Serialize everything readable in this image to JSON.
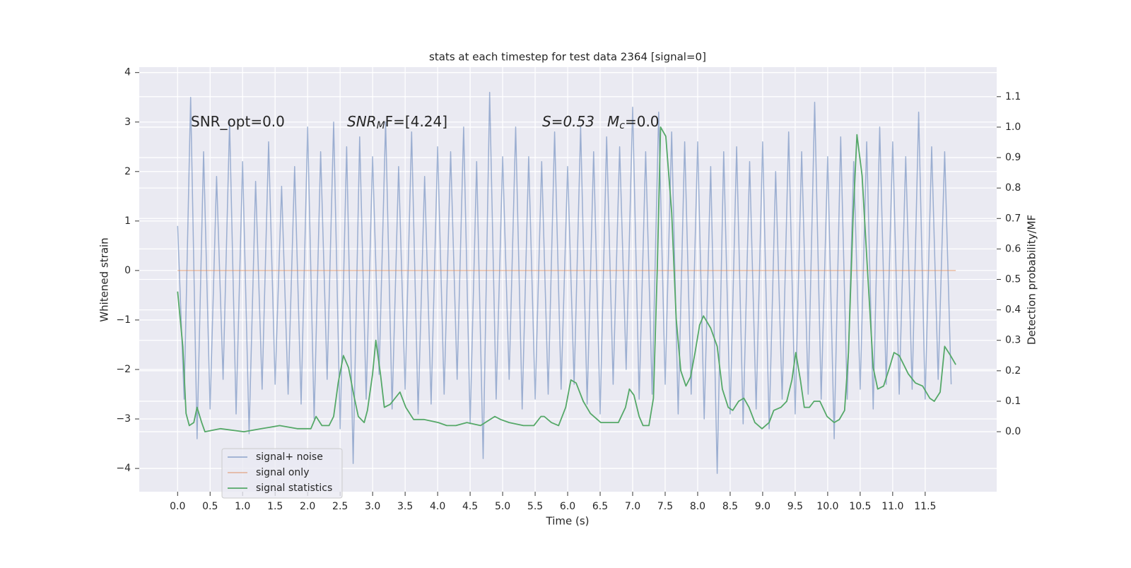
{
  "chart_data": {
    "type": "line",
    "title": "stats at each timestep for test data 2364 [signal=0]",
    "xlabel": "Time (s)",
    "ylabel": "Whitened strain",
    "y2label": "Detection probability/MF",
    "annotations": [
      {
        "text": "SNR_opt=0.0"
      },
      {
        "text": "SNR",
        "sub": "M",
        "tail": "F=[4.24]"
      },
      {
        "text": "S=0.53"
      },
      {
        "text": "M",
        "sub": "c",
        "tail": "=0.0"
      }
    ],
    "grid": true,
    "legend": "lower left",
    "xlim": [
      -0.59,
      12.6
    ],
    "ylim": [
      -4.47,
      4.11
    ],
    "y2lim": [
      -0.197,
      1.197
    ],
    "xticks": [
      {
        "value": 0,
        "label": "0.0"
      },
      0.5,
      {
        "value": 1,
        "label": "1.0"
      },
      1.5,
      {
        "value": 2,
        "label": "2.0"
      },
      2.5,
      {
        "value": 3,
        "label": "3.0"
      },
      3.5,
      {
        "value": 4,
        "label": "4.0"
      },
      4.5,
      {
        "value": 5,
        "label": "5.0"
      },
      5.5,
      {
        "value": 6,
        "label": "6.0"
      },
      6.5,
      {
        "value": 7,
        "label": "7.0"
      },
      7.5,
      {
        "value": 8,
        "label": "8.0"
      },
      8.5,
      {
        "value": 9,
        "label": "9.0"
      },
      9.5,
      {
        "value": 10,
        "label": "10.0"
      },
      10.5,
      {
        "value": 11,
        "label": "11.0"
      },
      11.5
    ],
    "yticks": [
      {
        "value": -4,
        "label": "−4"
      },
      {
        "value": -3,
        "label": "−3"
      },
      {
        "value": -2,
        "label": "−2"
      },
      {
        "value": -1,
        "label": "−1"
      },
      0,
      1,
      2,
      3,
      4
    ],
    "y2ticks": [
      {
        "value": 0,
        "label": "0.0"
      },
      0.1,
      0.2,
      0.3,
      0.4,
      0.5,
      0.6,
      0.7,
      0.8,
      0.9,
      {
        "value": 1,
        "label": "1.0"
      },
      1.1
    ],
    "series": [
      {
        "name": "signal+ noise",
        "color": "#4c72b0",
        "x": [
          0,
          0.1,
          0.2,
          0.3,
          0.4,
          0.5,
          0.6,
          0.7,
          0.8,
          0.9,
          1,
          1.1,
          1.2,
          1.3,
          1.4,
          1.5,
          1.6,
          1.7,
          1.8,
          1.9,
          2,
          2.1,
          2.2,
          2.3,
          2.4,
          2.5,
          2.6,
          2.7,
          2.8,
          2.9,
          3,
          3.1,
          3.2,
          3.3,
          3.4,
          3.5,
          3.6,
          3.7,
          3.8,
          3.9,
          4,
          4.1,
          4.2,
          4.3,
          4.4,
          4.5,
          4.6,
          4.7,
          4.8,
          4.9,
          5,
          5.1,
          5.2,
          5.3,
          5.4,
          5.5,
          5.6,
          5.7,
          5.8,
          5.9,
          6,
          6.1,
          6.2,
          6.3,
          6.4,
          6.5,
          6.6,
          6.7,
          6.8,
          6.9,
          7,
          7.1,
          7.2,
          7.3,
          7.4,
          7.5,
          7.6,
          7.7,
          7.8,
          7.9,
          8,
          8.1,
          8.2,
          8.3,
          8.4,
          8.5,
          8.6,
          8.7,
          8.8,
          8.9,
          9,
          9.1,
          9.2,
          9.3,
          9.4,
          9.5,
          9.6,
          9.7,
          9.8,
          9.9,
          10,
          10.1,
          10.2,
          10.3,
          10.4,
          10.5,
          10.6,
          10.7,
          10.8,
          10.9,
          11,
          11.1,
          11.2,
          11.3,
          11.4,
          11.5,
          11.6,
          11.7,
          11.8,
          11.9
        ],
        "values": [
          0.9,
          -2.6,
          3.5,
          -3.4,
          2.4,
          -2.8,
          1.9,
          -2.2,
          3.0,
          -2.9,
          2.2,
          -3.3,
          1.8,
          -2.4,
          2.6,
          -2.3,
          1.7,
          -2.5,
          2.1,
          -2.7,
          2.9,
          -3.0,
          2.4,
          -2.2,
          3.0,
          -3.2,
          2.5,
          -3.9,
          2.7,
          -2.6,
          2.3,
          -2.1,
          3.0,
          -2.8,
          2.1,
          -2.4,
          2.8,
          -2.9,
          1.9,
          -2.7,
          2.5,
          -2.5,
          2.4,
          -2.2,
          2.9,
          -3.1,
          2.2,
          -3.8,
          3.6,
          -2.6,
          2.3,
          -2.2,
          2.9,
          -2.8,
          2.3,
          -2.6,
          2.2,
          -2.5,
          2.8,
          -2.4,
          2.1,
          -2.3,
          2.9,
          -2.7,
          2.4,
          -2.9,
          2.7,
          -2.3,
          2.5,
          -2.0,
          3.3,
          -2.6,
          2.4,
          -2.5,
          3.2,
          -2.3,
          2.8,
          -2.9,
          2.6,
          -2.5,
          2.6,
          -3.0,
          2.1,
          -4.1,
          2.4,
          -2.9,
          2.5,
          -3.1,
          2.2,
          -2.8,
          2.6,
          -3.2,
          2.0,
          -2.6,
          2.8,
          -2.9,
          2.4,
          -2.5,
          3.4,
          -2.6,
          2.3,
          -3.4,
          2.7,
          -2.6,
          2.2,
          -2.4,
          2.6,
          -2.8,
          2.9,
          -2.3,
          2.6,
          -2.5,
          2.3,
          -2.4,
          3.2,
          -2.6,
          2.5,
          -2.2,
          2.4,
          -2.3
        ]
      },
      {
        "name": "signal only",
        "color": "#dd8452",
        "x": [
          0,
          11.97
        ],
        "values": [
          0,
          0
        ]
      },
      {
        "name": "signal statistics",
        "color": "#55a868",
        "axis": "y2",
        "x": [
          0,
          0.08,
          0.13,
          0.18,
          0.25,
          0.3,
          0.37,
          0.42,
          0.66,
          1.02,
          1.29,
          1.57,
          1.84,
          2.05,
          2.13,
          2.22,
          2.33,
          2.4,
          2.47,
          2.55,
          2.63,
          2.71,
          2.78,
          2.87,
          2.92,
          3,
          3.05,
          3.12,
          3.18,
          3.27,
          3.42,
          3.51,
          3.63,
          3.79,
          4.01,
          4.14,
          4.28,
          4.45,
          4.66,
          4.88,
          4.97,
          5.1,
          5.32,
          5.48,
          5.59,
          5.64,
          5.75,
          5.86,
          5.97,
          6.05,
          6.13,
          6.24,
          6.35,
          6.51,
          6.67,
          6.78,
          6.89,
          6.95,
          7.02,
          7.1,
          7.16,
          7.25,
          7.32,
          7.38,
          7.43,
          7.51,
          7.6,
          7.67,
          7.74,
          7.82,
          7.89,
          7.96,
          8.03,
          8.09,
          8.2,
          8.3,
          8.38,
          8.47,
          8.54,
          8.63,
          8.71,
          8.79,
          8.88,
          8.99,
          9.1,
          9.17,
          9.28,
          9.37,
          9.45,
          9.51,
          9.58,
          9.64,
          9.72,
          9.79,
          9.88,
          9.99,
          10.1,
          10.18,
          10.26,
          10.32,
          10.39,
          10.45,
          10.53,
          10.61,
          10.7,
          10.77,
          10.86,
          10.95,
          11.02,
          11.1,
          11.24,
          11.35,
          11.46,
          11.57,
          11.64,
          11.73,
          11.8,
          11.89,
          11.97
        ],
        "values": [
          0.46,
          0.28,
          0.06,
          0.02,
          0.03,
          0.08,
          0.03,
          0,
          0.01,
          0,
          0.01,
          0.02,
          0.01,
          0.01,
          0.05,
          0.02,
          0.02,
          0.05,
          0.16,
          0.25,
          0.21,
          0.12,
          0.05,
          0.03,
          0.07,
          0.19,
          0.3,
          0.19,
          0.08,
          0.09,
          0.13,
          0.08,
          0.04,
          0.04,
          0.03,
          0.02,
          0.02,
          0.03,
          0.02,
          0.05,
          0.04,
          0.03,
          0.02,
          0.02,
          0.05,
          0.05,
          0.03,
          0.02,
          0.08,
          0.17,
          0.16,
          0.1,
          0.06,
          0.03,
          0.03,
          0.03,
          0.08,
          0.14,
          0.12,
          0.05,
          0.02,
          0.02,
          0.11,
          0.54,
          1.0,
          0.97,
          0.72,
          0.37,
          0.2,
          0.15,
          0.18,
          0.26,
          0.35,
          0.38,
          0.34,
          0.28,
          0.14,
          0.08,
          0.07,
          0.1,
          0.11,
          0.08,
          0.03,
          0.01,
          0.03,
          0.07,
          0.08,
          0.1,
          0.17,
          0.26,
          0.17,
          0.08,
          0.08,
          0.1,
          0.1,
          0.05,
          0.03,
          0.04,
          0.07,
          0.26,
          0.7,
          0.975,
          0.84,
          0.54,
          0.21,
          0.14,
          0.15,
          0.21,
          0.26,
          0.25,
          0.19,
          0.16,
          0.15,
          0.11,
          0.1,
          0.13,
          0.28,
          0.25,
          0.22
        ]
      }
    ]
  }
}
